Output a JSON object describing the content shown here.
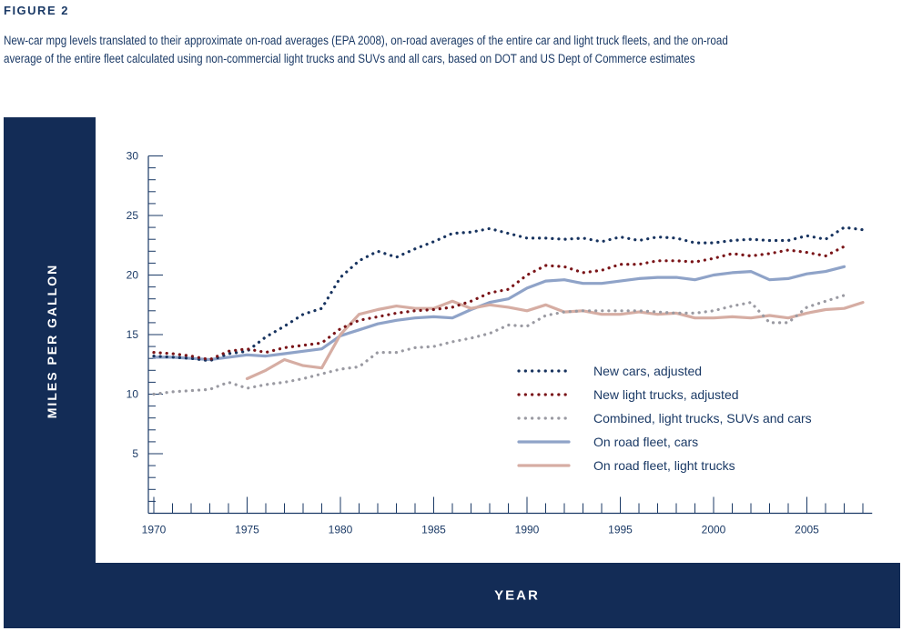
{
  "figure_label": "FIGURE 2",
  "caption": {
    "line1": "New-car mpg levels translated to their approximate on-road averages (EPA 2008), on-road averages of the entire car and light truck fleets, and the on-road",
    "line2": "average of the entire fleet calculated using non-commercial light trucks and SUVs and all cars, based on DOT and US Dept of Commerce estimates"
  },
  "colors": {
    "frame": "#132c56",
    "text": "#1b3a66",
    "new_cars": "#17335f",
    "new_light_trucks": "#7a1418",
    "combined": "#9a9aa2",
    "fleet_cars": "#8fa3c8",
    "fleet_light_trucks": "#d6ada3"
  },
  "chart_data": {
    "type": "line",
    "title": "",
    "xlabel": "YEAR",
    "ylabel": "MILES PER GALLON",
    "xlim": [
      1970,
      2008.5
    ],
    "ylim": [
      0,
      30
    ],
    "x_ticks": [
      1970,
      1975,
      1980,
      1985,
      1990,
      1995,
      2000,
      2005
    ],
    "y_ticks": [
      5,
      10,
      15,
      20,
      25,
      30
    ],
    "x_tick_labels": [
      "1970",
      "1975",
      "1980",
      "1985",
      "1990",
      "1995",
      "2000",
      "2005"
    ],
    "y_tick_labels": [
      "5",
      "10",
      "15",
      "20",
      "25",
      "30"
    ],
    "grid": false,
    "legend_position": "center-right",
    "series": [
      {
        "name": "New cars, adjusted",
        "style": "dotted",
        "x": [
          1970,
          1971,
          1972,
          1973,
          1974,
          1975,
          1976,
          1977,
          1978,
          1979,
          1980,
          1981,
          1982,
          1983,
          1984,
          1985,
          1986,
          1987,
          1988,
          1989,
          1990,
          1991,
          1992,
          1993,
          1994,
          1995,
          1996,
          1997,
          1998,
          1999,
          2000,
          2001,
          2002,
          2003,
          2004,
          2005,
          2006,
          2007,
          2008
        ],
        "y": [
          13.2,
          13.1,
          13.0,
          12.8,
          13.4,
          13.6,
          14.8,
          15.7,
          16.7,
          17.2,
          19.8,
          21.2,
          22.0,
          21.5,
          22.2,
          22.8,
          23.5,
          23.6,
          23.9,
          23.5,
          23.1,
          23.1,
          23.0,
          23.1,
          22.8,
          23.2,
          22.9,
          23.2,
          23.1,
          22.7,
          22.7,
          22.9,
          23.0,
          22.9,
          22.9,
          23.3,
          23.0,
          24.0,
          23.8
        ]
      },
      {
        "name": "New light trucks, adjusted",
        "style": "dotted",
        "x": [
          1970,
          1971,
          1972,
          1973,
          1974,
          1975,
          1976,
          1977,
          1978,
          1979,
          1980,
          1981,
          1982,
          1983,
          1984,
          1985,
          1986,
          1987,
          1988,
          1989,
          1990,
          1991,
          1992,
          1993,
          1994,
          1995,
          1996,
          1997,
          1998,
          1999,
          2000,
          2001,
          2002,
          2003,
          2004,
          2005,
          2006,
          2007
        ],
        "y": [
          13.5,
          13.4,
          13.2,
          12.9,
          13.6,
          13.8,
          13.5,
          13.9,
          14.1,
          14.3,
          15.5,
          16.2,
          16.5,
          16.8,
          17.0,
          17.1,
          17.3,
          17.8,
          18.5,
          18.8,
          20.0,
          20.8,
          20.7,
          20.2,
          20.4,
          20.9,
          20.9,
          21.2,
          21.2,
          21.1,
          21.4,
          21.8,
          21.6,
          21.8,
          22.1,
          21.9,
          21.6,
          22.4
        ]
      },
      {
        "name": "Combined, light trucks, SUVs and cars",
        "style": "dotted",
        "x": [
          1970,
          1971,
          1972,
          1973,
          1974,
          1975,
          1976,
          1977,
          1978,
          1979,
          1980,
          1981,
          1982,
          1983,
          1984,
          1985,
          1986,
          1987,
          1988,
          1989,
          1990,
          1991,
          1992,
          1993,
          1994,
          1995,
          1996,
          1997,
          1998,
          1999,
          2000,
          2001,
          2002,
          2003,
          2004,
          2005,
          2006,
          2007
        ],
        "y": [
          10.0,
          10.2,
          10.3,
          10.4,
          11.0,
          10.5,
          10.8,
          11.0,
          11.3,
          11.7,
          12.1,
          12.3,
          13.5,
          13.5,
          13.9,
          14.0,
          14.4,
          14.7,
          15.1,
          15.8,
          15.7,
          16.6,
          16.9,
          17.0,
          17.0,
          17.0,
          17.0,
          16.9,
          16.8,
          16.8,
          17.0,
          17.4,
          17.7,
          16.0,
          16.0,
          17.3,
          17.8,
          18.3
        ]
      },
      {
        "name": "On road fleet, cars",
        "style": "solid",
        "x": [
          1970,
          1971,
          1972,
          1973,
          1974,
          1975,
          1976,
          1977,
          1978,
          1979,
          1980,
          1981,
          1982,
          1983,
          1984,
          1985,
          1986,
          1987,
          1988,
          1989,
          1990,
          1991,
          1992,
          1993,
          1994,
          1995,
          1996,
          1997,
          1998,
          1999,
          2000,
          2001,
          2002,
          2003,
          2004,
          2005,
          2006,
          2007
        ],
        "y": [
          13.1,
          13.1,
          13.0,
          12.9,
          13.1,
          13.3,
          13.2,
          13.4,
          13.6,
          13.8,
          14.9,
          15.4,
          15.9,
          16.2,
          16.4,
          16.5,
          16.4,
          17.1,
          17.7,
          18.0,
          18.9,
          19.5,
          19.6,
          19.3,
          19.3,
          19.5,
          19.7,
          19.8,
          19.8,
          19.6,
          20.0,
          20.2,
          20.3,
          19.6,
          19.7,
          20.1,
          20.3,
          20.7
        ]
      },
      {
        "name": "On road fleet, light trucks",
        "style": "solid",
        "x": [
          1975,
          1976,
          1977,
          1978,
          1979,
          1980,
          1981,
          1982,
          1983,
          1984,
          1985,
          1986,
          1987,
          1988,
          1989,
          1990,
          1991,
          1992,
          1993,
          1994,
          1995,
          1996,
          1997,
          1998,
          1999,
          2000,
          2001,
          2002,
          2003,
          2004,
          2005,
          2006,
          2007,
          2008
        ],
        "y": [
          11.3,
          12.0,
          12.9,
          12.4,
          12.2,
          15.0,
          16.7,
          17.1,
          17.4,
          17.2,
          17.2,
          17.8,
          17.2,
          17.5,
          17.3,
          17.0,
          17.5,
          16.9,
          17.0,
          16.7,
          16.7,
          16.9,
          16.7,
          16.8,
          16.4,
          16.4,
          16.5,
          16.4,
          16.6,
          16.4,
          16.8,
          17.1,
          17.2,
          17.7
        ]
      }
    ]
  },
  "ui": {
    "legend": [
      {
        "label": "New cars, adjusted",
        "style": "dotted",
        "color_key": "new_cars"
      },
      {
        "label": "New light trucks, adjusted",
        "style": "dotted",
        "color_key": "new_light_trucks"
      },
      {
        "label": "Combined, light trucks, SUVs and cars",
        "style": "dotted",
        "color_key": "combined"
      },
      {
        "label": "On road fleet, cars",
        "style": "solid",
        "color_key": "fleet_cars"
      },
      {
        "label": "On road fleet, light trucks",
        "style": "solid",
        "color_key": "fleet_light_trucks"
      }
    ]
  }
}
